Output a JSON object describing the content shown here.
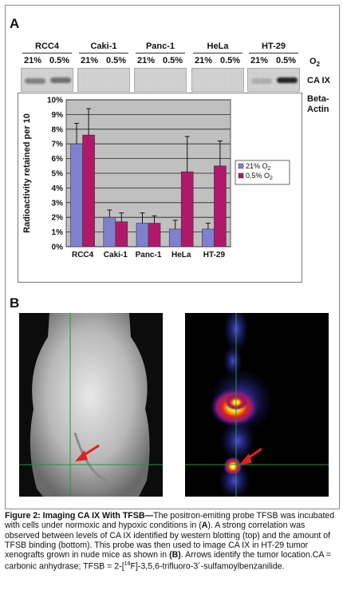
{
  "panel_a_label": "A",
  "panel_b_label": "B",
  "blot": {
    "lanes": [
      "RCC4",
      "Caki-1",
      "Panc-1",
      "HeLa",
      "HT-29"
    ],
    "conditions": [
      "21%",
      "0.5%"
    ],
    "o2_label": "O",
    "o2_sub": "2",
    "caix_label": "CA IX",
    "beta_label_1": "Beta-",
    "beta_label_2": "Actin"
  },
  "chart_data": {
    "type": "bar",
    "categories": [
      "RCC4",
      "Caki-1",
      "Panc-1",
      "HeLa",
      "HT-29"
    ],
    "series": [
      {
        "name": "21% O2",
        "values": [
          7.0,
          2.0,
          1.6,
          1.2,
          1.2
        ],
        "errors": [
          1.4,
          0.5,
          0.7,
          0.6,
          0.4
        ],
        "color": "#8080d0"
      },
      {
        "name": "0.5% O2",
        "values": [
          7.6,
          1.7,
          1.6,
          5.1,
          5.5
        ],
        "errors": [
          1.8,
          0.6,
          0.5,
          2.4,
          1.7
        ],
        "color": "#b0196a"
      }
    ],
    "ylabel": "Radioactivity retained per 10",
    "ylim": [
      0,
      10
    ],
    "yticks": [
      "0%",
      "1%",
      "2%",
      "3%",
      "4%",
      "5%",
      "6%",
      "7%",
      "8%",
      "9%",
      "10%"
    ],
    "grid": true,
    "legend_position": "right",
    "legend": [
      {
        "prefix": "21% O",
        "sub": "2"
      },
      {
        "prefix": "0.5% O",
        "sub": "2"
      }
    ]
  },
  "colors": {
    "series1": "#8080d0",
    "series2": "#b0196a",
    "plot_bg": "#c0c0c0",
    "crosshair": "#1a9a3a",
    "arrow": "#e02020"
  },
  "caption": {
    "title": "Figure 2: Imaging CA IX With TFSB—",
    "t1": "The positron-emiting probe TFSB was incubated with cells under normoxic and hypoxic conditions in (",
    "a_ref": "A",
    "t2": "). A strong correlation was observed between levels of CA IX identified by western blotting (top) and the amount of TFSB binding (bottom). This probe was then used to image CA IX in HT-29 tumor xenografts grown in nude mice as shown in ",
    "b_ref": "(B)",
    "t3": ". Arrows identify the tumor location.CA = carbonic anhydrase; TFSB = 2-[",
    "sup": "18",
    "t4": "F]-3,5,6-trifluoro-3´-sulfamoylbenzanilide."
  }
}
